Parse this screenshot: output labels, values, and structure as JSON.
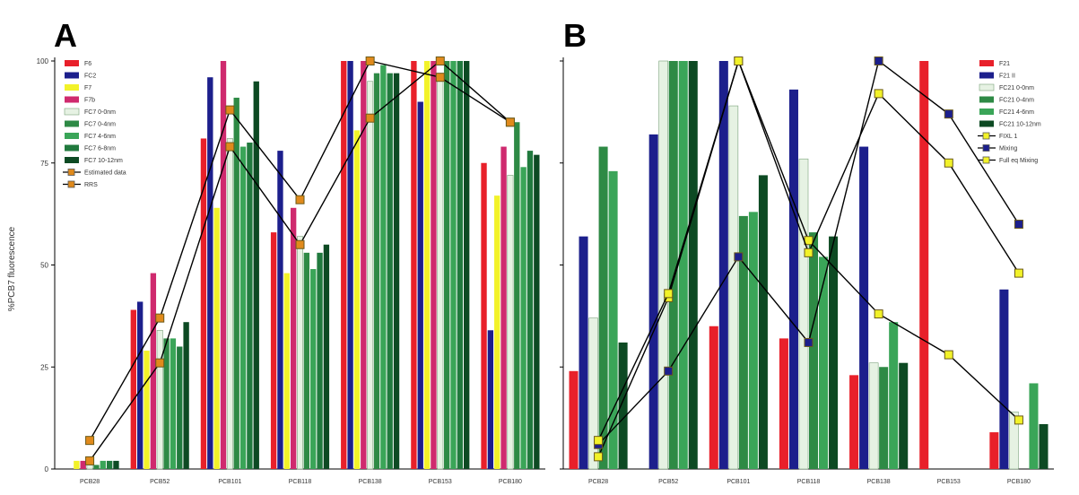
{
  "colors": {
    "F6": "#e8202a",
    "FC2": "#1c1f8c",
    "F7": "#f2f229",
    "F7b": "#cf2a6e",
    "FC7_0_0nm": "#e6f2e3",
    "FC7_0_4nm": "#2e8a45",
    "FC7_4_6nm": "#3aa558",
    "FC7_6_8nm": "#217a3e",
    "FC7_10_12nm": "#0d4a23",
    "marker_fill": "#e08a1c",
    "marker_fill_b": "#f2f229",
    "line": "#000000"
  },
  "chart_data": [
    {
      "panel_label": "A",
      "type": "bar",
      "ylabel": "%PCB7 fluorescence",
      "ylim": [
        0,
        100
      ],
      "yticks": [
        "0",
        "25",
        "50",
        "75",
        "100"
      ],
      "categories": [
        "PCB28",
        "PCB52",
        "PCB101",
        "PCB118",
        "PCB138",
        "PCB153",
        "PCB180"
      ],
      "legend_position": "top-left",
      "series": [
        {
          "name": "F6",
          "color_key": "F6",
          "values": [
            0,
            39,
            81,
            58,
            100,
            100,
            75
          ]
        },
        {
          "name": "FC2",
          "color_key": "FC2",
          "values": [
            0,
            41,
            96,
            78,
            100,
            90,
            34
          ]
        },
        {
          "name": "F7",
          "color_key": "F7",
          "values": [
            2,
            29,
            64,
            48,
            83,
            100,
            67
          ]
        },
        {
          "name": "F7b",
          "color_key": "F7b",
          "values": [
            2,
            48,
            100,
            64,
            100,
            100,
            79
          ]
        },
        {
          "name": "FC7 0-0nm",
          "color_key": "FC7_0_0nm",
          "values": [
            1,
            34,
            81,
            57,
            95,
            97,
            72
          ]
        },
        {
          "name": "FC7 0-4nm",
          "color_key": "FC7_0_4nm",
          "values": [
            1,
            32,
            91,
            53,
            97,
            100,
            85
          ]
        },
        {
          "name": "FC7 4-6nm",
          "color_key": "FC7_4_6nm",
          "values": [
            2,
            32,
            79,
            49,
            99,
            100,
            74
          ]
        },
        {
          "name": "FC7 6-8nm",
          "color_key": "FC7_6_8nm",
          "values": [
            2,
            30,
            80,
            53,
            97,
            100,
            78
          ]
        },
        {
          "name": "FC7 10-12nm",
          "color_key": "FC7_10_12nm",
          "values": [
            2,
            36,
            95,
            55,
            97,
            100,
            77
          ]
        }
      ],
      "line_series": [
        {
          "name": "Estimated data",
          "values": [
            2,
            26,
            79,
            55,
            86,
            100,
            85
          ],
          "marker": "square",
          "marker_color_key": "marker_fill"
        },
        {
          "name": "RRS",
          "values": [
            7,
            37,
            88,
            66,
            100,
            96,
            85
          ],
          "marker": "square",
          "marker_color_key": "marker_fill"
        }
      ],
      "legend": [
        "F6",
        "FC2",
        "F7",
        "F7b",
        "FC7 0-0nm",
        "FC7 0-4nm",
        "FC7 4-6nm",
        "FC7 6-8nm",
        "FC7 10-12nm",
        "Estimated data",
        "RRS"
      ],
      "xticks": [
        "PCB28",
        "PCB52",
        "PCB101",
        "PCB118",
        "PCB138",
        "PCB153",
        "PCB180"
      ]
    },
    {
      "panel_label": "B",
      "type": "bar",
      "ylim": [
        0,
        100
      ],
      "categories": [
        "PCB28",
        "PCB52",
        "PCB101",
        "PCB118",
        "PCB138",
        "PCB153",
        "PCB180"
      ],
      "legend_position": "top-right",
      "series": [
        {
          "name": "F21",
          "color_key": "F6",
          "values": [
            24,
            0,
            35,
            32,
            23,
            100,
            9
          ]
        },
        {
          "name": "F21 II",
          "color_key": "FC2",
          "values": [
            57,
            82,
            100,
            93,
            79,
            0,
            44
          ]
        },
        {
          "name": "FC21 0-0nm",
          "color_key": "FC7_0_0nm",
          "values": [
            37,
            100,
            89,
            76,
            26,
            0,
            14
          ]
        },
        {
          "name": "FC21 0-4nm",
          "color_key": "FC7_0_4nm",
          "values": [
            79,
            100,
            62,
            58,
            25,
            0,
            0
          ]
        },
        {
          "name": "FC21 4-6nm",
          "color_key": "FC7_4_6nm",
          "values": [
            73,
            100,
            63,
            52,
            36,
            0,
            21
          ]
        },
        {
          "name": "FC21 10-12nm",
          "color_key": "FC7_10_12nm",
          "values": [
            31,
            100,
            72,
            57,
            26,
            0,
            11
          ]
        }
      ],
      "line_series": [
        {
          "name": "FIXL 1",
          "values": [
            3,
            42,
            100,
            56,
            38,
            28,
            12
          ],
          "marker": "square",
          "marker_color_key": "marker_fill_b"
        },
        {
          "name": "Mixing",
          "values": [
            6,
            24,
            52,
            31,
            100,
            87,
            60
          ],
          "marker": "square",
          "marker_color_key": "FC2"
        },
        {
          "name": "Full eq Mixing",
          "values": [
            7,
            43,
            100,
            53,
            92,
            75,
            48
          ],
          "marker": "square",
          "marker_color_key": "marker_fill_b"
        }
      ],
      "legend": [
        "F21",
        "F21 II",
        "FC21 0-0nm",
        "FC21 0-4nm",
        "FC21 4-6nm",
        "FC21 10-12nm",
        "FIXL 1",
        "Mixing",
        "Full eq Mixing"
      ],
      "xticks": [
        "PCB28",
        "PCB52",
        "PCB101",
        "PCB118",
        "PCB138",
        "PCB153",
        "PCB180"
      ]
    }
  ]
}
